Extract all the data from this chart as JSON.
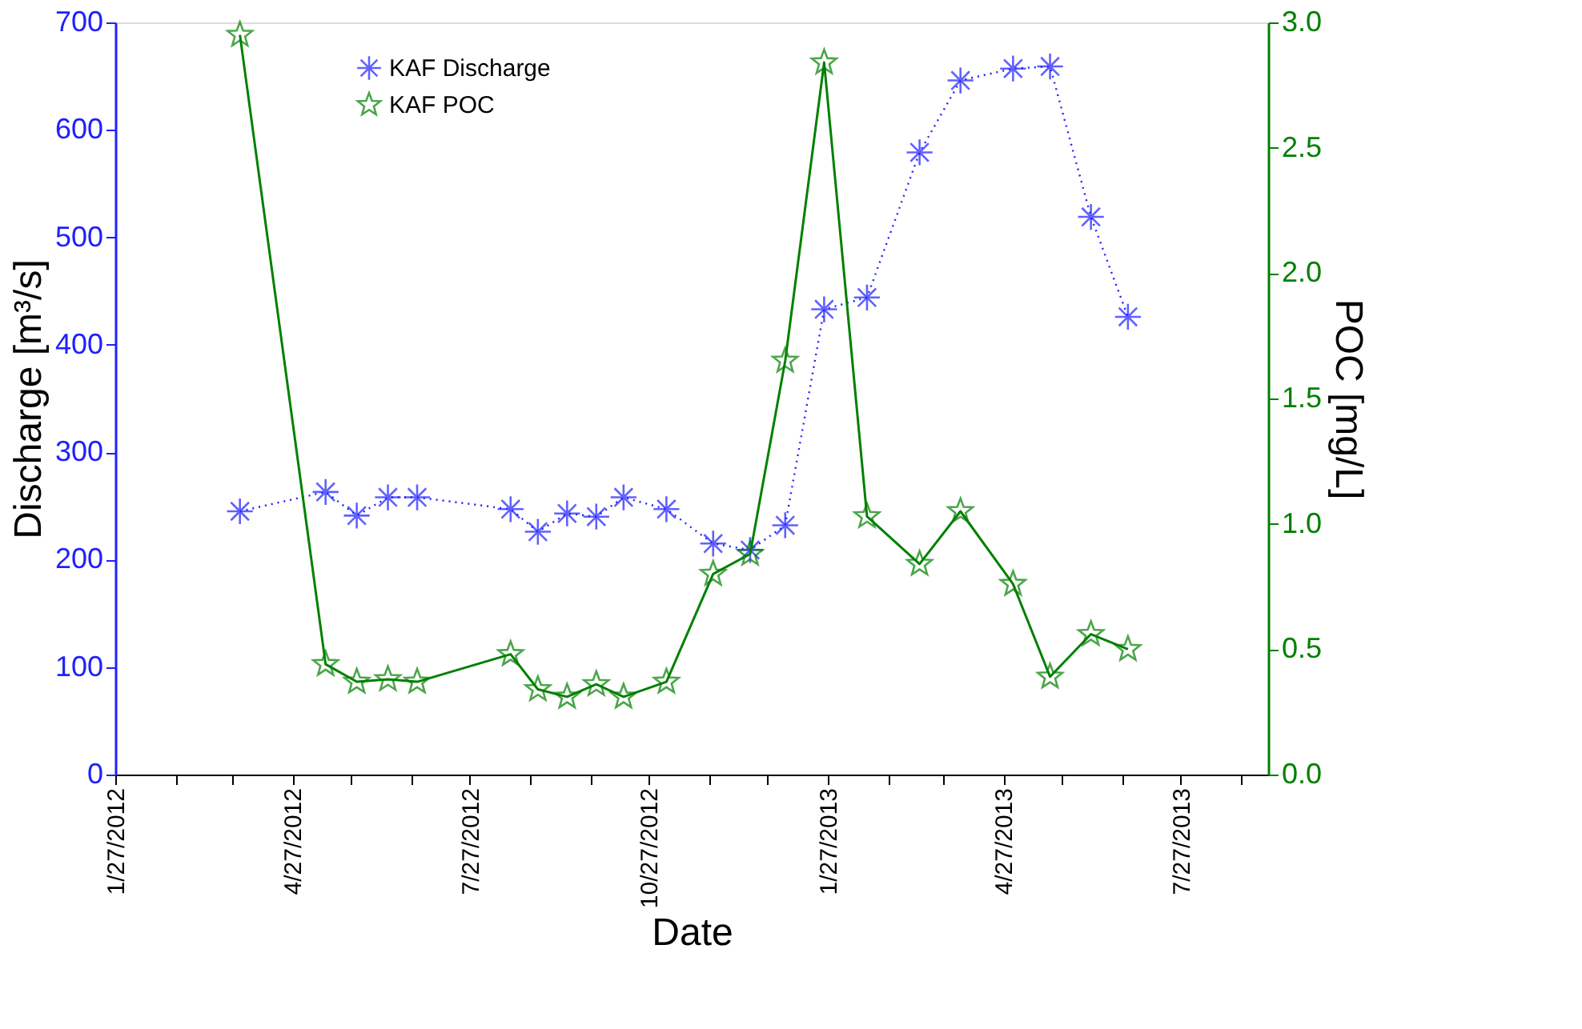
{
  "chart_data": {
    "type": "line",
    "xlabel": "Date",
    "ylabel": "Discharge [m³/s]",
    "y2label": "POC [mg/L]",
    "x": [
      "2012-03-31",
      "2012-05-14",
      "2012-05-30",
      "2012-06-15",
      "2012-06-30",
      "2012-08-17",
      "2012-08-31",
      "2012-09-15",
      "2012-09-30",
      "2012-10-14",
      "2012-11-05",
      "2012-11-29",
      "2012-12-18",
      "2013-01-05",
      "2013-01-25",
      "2013-02-16",
      "2013-03-15",
      "2013-04-05",
      "2013-05-02",
      "2013-05-21",
      "2013-06-11",
      "2013-06-30"
    ],
    "series": [
      {
        "name": "KAF Discharge",
        "color": "#1f1fff",
        "axis": "y",
        "marker": "cross",
        "line_style": "dotted",
        "values": [
          245,
          263,
          241,
          258,
          258,
          247,
          226,
          243,
          240,
          258,
          247,
          215,
          209,
          232,
          433,
          444,
          579,
          646,
          657,
          659,
          519,
          426
        ]
      },
      {
        "name": "KAF POC",
        "color": "#008000",
        "axis": "y2",
        "marker": "star",
        "line_style": "solid",
        "values": [
          2.95,
          0.44,
          0.37,
          0.38,
          0.37,
          0.48,
          0.34,
          0.31,
          0.36,
          0.31,
          0.37,
          0.8,
          0.88,
          1.65,
          2.84,
          1.03,
          0.84,
          1.05,
          0.76,
          0.39,
          0.56,
          0.5
        ]
      }
    ],
    "xlim": [
      "2012-01-27",
      "2013-09-10"
    ],
    "xticks": [
      {
        "value": "2012-01-27",
        "label": "1/27/2012"
      },
      {
        "value": "2012-02-27",
        "label": null
      },
      {
        "value": "2012-03-27",
        "label": null
      },
      {
        "value": "2012-04-27",
        "label": "4/27/2012"
      },
      {
        "value": "2012-05-27",
        "label": null
      },
      {
        "value": "2012-06-27",
        "label": null
      },
      {
        "value": "2012-07-27",
        "label": "7/27/2012"
      },
      {
        "value": "2012-08-27",
        "label": null
      },
      {
        "value": "2012-09-27",
        "label": null
      },
      {
        "value": "2012-10-27",
        "label": "10/27/2012"
      },
      {
        "value": "2012-11-27",
        "label": null
      },
      {
        "value": "2012-12-27",
        "label": null
      },
      {
        "value": "2013-01-27",
        "label": "1/27/2013"
      },
      {
        "value": "2013-02-27",
        "label": null
      },
      {
        "value": "2013-03-27",
        "label": null
      },
      {
        "value": "2013-04-27",
        "label": "4/27/2013"
      },
      {
        "value": "2013-05-27",
        "label": null
      },
      {
        "value": "2013-06-27",
        "label": null
      },
      {
        "value": "2013-07-27",
        "label": "7/27/2013"
      },
      {
        "value": "2013-08-27",
        "label": null
      }
    ],
    "ylim": [
      0,
      700
    ],
    "yticks": [
      0,
      100,
      200,
      300,
      400,
      500,
      600,
      700
    ],
    "y2lim": [
      0,
      3
    ],
    "y2ticks": [
      {
        "value": 0,
        "label": "0.0"
      },
      {
        "value": 0.5,
        "label": "0.5"
      },
      {
        "value": 1,
        "label": "1.0"
      },
      {
        "value": 1.5,
        "label": "1.5"
      },
      {
        "value": 2,
        "label": "2.0"
      },
      {
        "value": 2.5,
        "label": "2.5"
      },
      {
        "value": 3,
        "label": "3.0"
      }
    ],
    "grid": false,
    "legend": "top left"
  }
}
